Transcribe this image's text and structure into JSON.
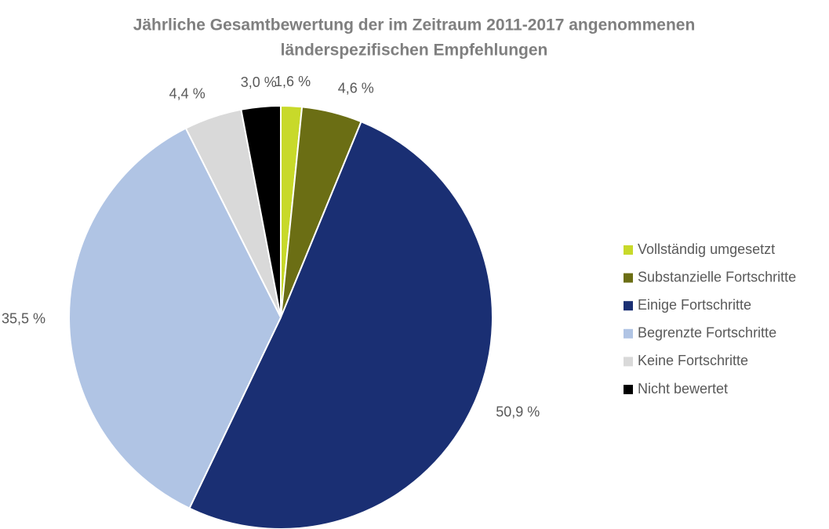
{
  "chart_data": {
    "type": "pie",
    "title": [
      "Jährliche Gesamtbewertung der im Zeitraum 2011-2017 angenommenen",
      "länderspezifischen Empfehlungen"
    ],
    "categories": [
      "Vollständig umgesetzt",
      "Substanzielle Fortschritte",
      "Einige Fortschritte",
      "Begrenzte Fortschritte",
      "Keine Fortschritte",
      "Nicht bewertet"
    ],
    "values": [
      1.6,
      4.6,
      50.9,
      35.5,
      4.4,
      3.0
    ],
    "value_labels": [
      "1,6 %",
      "4,6 %",
      "50,9 %",
      "35,5 %",
      "4,4 %",
      "3,0 %"
    ],
    "colors": [
      "#c8d92a",
      "#6b6e14",
      "#1a2f73",
      "#b0c4e4",
      "#d9d9d9",
      "#000000"
    ],
    "legend": "right"
  }
}
